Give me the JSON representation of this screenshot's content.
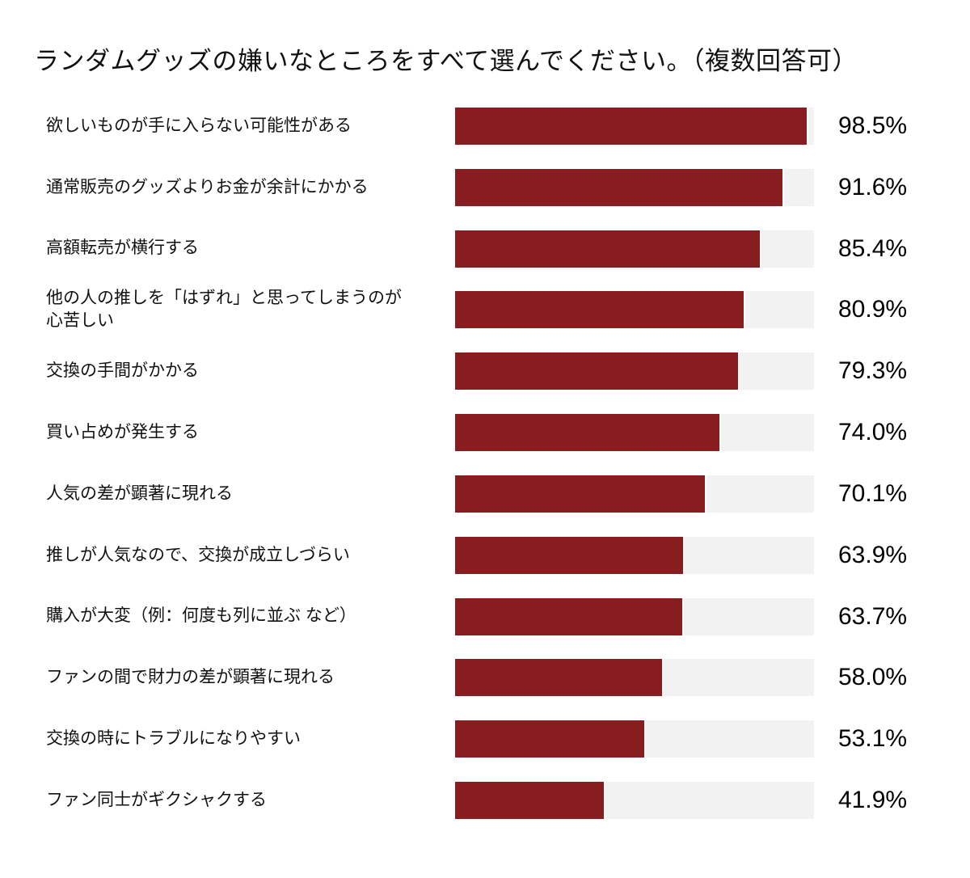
{
  "chart_data": {
    "type": "bar",
    "orientation": "horizontal",
    "title": "ランダムグッズの嫌いなところをすべて選んでください。（複数回答可）",
    "xlabel": "",
    "ylabel": "",
    "xlim": [
      0,
      100
    ],
    "unit": "%",
    "grid": false,
    "legend": "none",
    "categories": [
      "欲しいものが手に入らない可能性がある",
      "通常販売のグッズよりお金が余計にかかる",
      "高額転売が横行する",
      "他の人の推しを「はずれ」と思ってしまうのが\n心苦しい",
      "交換の手間がかかる",
      "買い占めが発生する",
      "人気の差が顕著に現れる",
      "推しが人気なので、交換が成立しづらい",
      "購入が大変（例：何度も列に並ぶ など）",
      "ファンの間で財力の差が顕著に現れる",
      "交換の時にトラブルになりやすい",
      "ファン同士がギクシャクする"
    ],
    "values": [
      98.5,
      91.6,
      85.4,
      80.9,
      79.3,
      74.0,
      70.1,
      63.9,
      63.7,
      58.0,
      53.1,
      41.9
    ],
    "value_labels": [
      "98.5%",
      "91.6%",
      "85.4%",
      "80.9%",
      "79.3%",
      "74.0%",
      "70.1%",
      "63.9%",
      "63.7%",
      "58.0%",
      "53.1%",
      "41.9%"
    ]
  },
  "colors": {
    "bar": "#871d1f",
    "track": "#f2f2f2",
    "text": "#111111"
  }
}
